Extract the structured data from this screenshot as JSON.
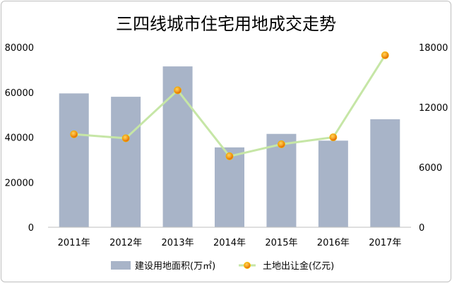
{
  "chart_data": {
    "type": "bar",
    "title": "三四线城市住宅用地成交走势",
    "categories": [
      "2011年",
      "2012年",
      "2013年",
      "2014年",
      "2015年",
      "2016年",
      "2017年"
    ],
    "series": [
      {
        "name": "建设用地面积(万㎡)",
        "type": "bar",
        "axis": "left",
        "color": "#a8b4c8",
        "values": [
          59500,
          58000,
          71500,
          35500,
          41500,
          38500,
          48000
        ]
      },
      {
        "name": "土地出让金(亿元)",
        "type": "line",
        "axis": "right",
        "line_color": "#c6e6a6",
        "marker_color": "#f07a10",
        "values": [
          9300,
          8900,
          13700,
          7100,
          8300,
          9000,
          17200
        ]
      }
    ],
    "y_left": {
      "min": 0,
      "max": 80000,
      "ticks": [
        0,
        20000,
        40000,
        60000,
        80000
      ]
    },
    "y_right": {
      "min": 0,
      "max": 18000,
      "ticks": [
        0,
        6000,
        12000,
        18000
      ]
    },
    "grid": false,
    "legend_position": "bottom"
  }
}
